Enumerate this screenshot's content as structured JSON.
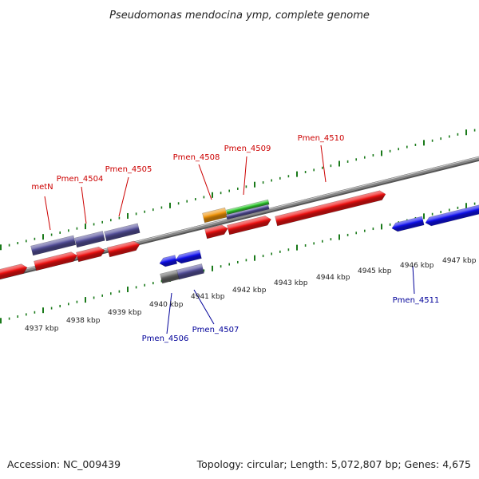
{
  "title": "Pseudomonas mendocina ymp, complete genome",
  "footer": {
    "accession": "Accession: NC_009439",
    "summary": "Topology: circular; Length: 5,072,807 bp; Genes: 4,675"
  },
  "colors": {
    "forward_label": "#cc0000",
    "reverse_label": "#000099",
    "backbone": "#888888",
    "tick": "#1a7a1a",
    "cds_red": "#ee1111",
    "cds_blue": "#1010ee",
    "cog_purple": "#55509a",
    "cog_gray": "#666666",
    "cog_orange": "#f0940a",
    "cog_green": "#33cc33"
  },
  "kbp_labels": [
    "4937 kbp",
    "4938 kbp",
    "4939 kbp",
    "4940 kbp",
    "4941 kbp",
    "4942 kbp",
    "4943 kbp",
    "4944 kbp",
    "4945 kbp",
    "4946 kbp",
    "4947 kbp"
  ],
  "gene_labels": {
    "metN": "metN",
    "pmen_4504": "Pmen_4504",
    "pmen_4505": "Pmen_4505",
    "pmen_4506": "Pmen_4506",
    "pmen_4507": "Pmen_4507",
    "pmen_4508": "Pmen_4508",
    "pmen_4509": "Pmen_4509",
    "pmen_4510": "Pmen_4510",
    "pmen_4511": "Pmen_4511"
  }
}
